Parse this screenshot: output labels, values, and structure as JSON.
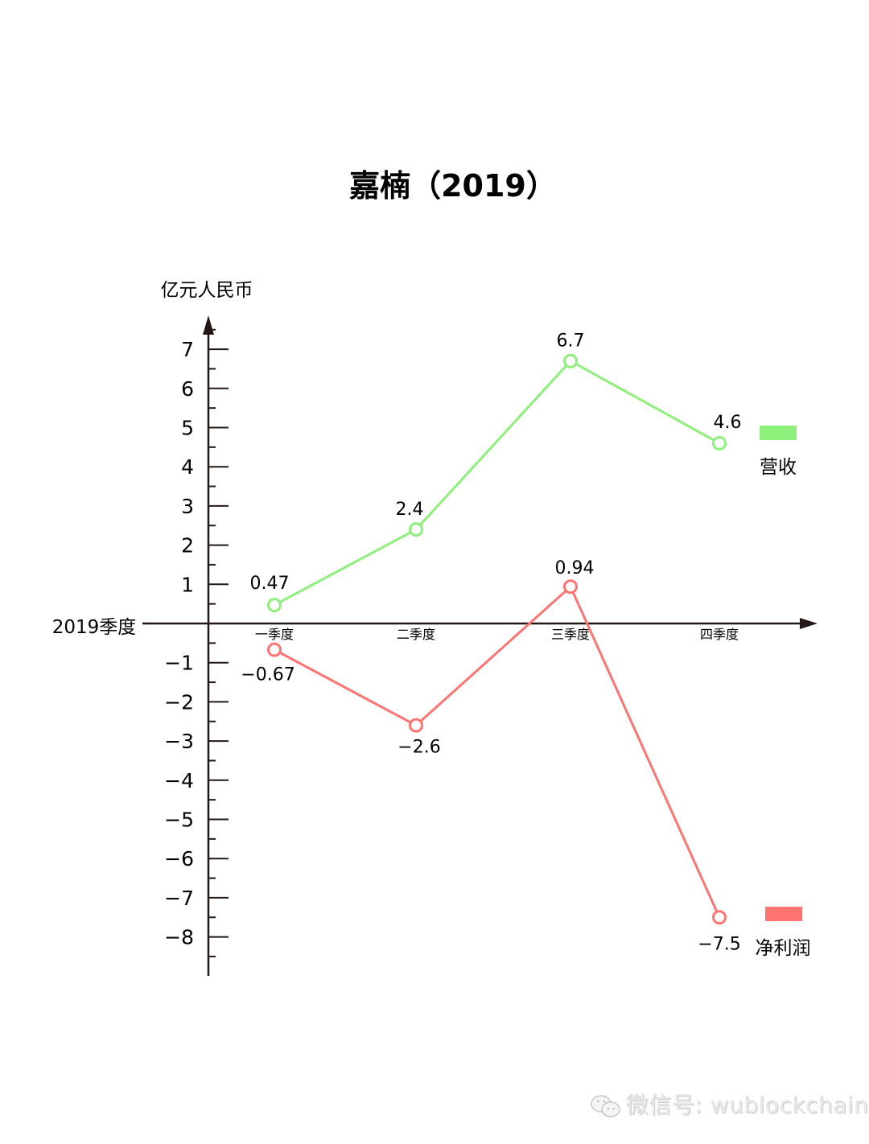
{
  "chart_data": {
    "type": "line",
    "title": "嘉楠（2019）",
    "ylabel": "亿元人民币",
    "xlabel": "2019季度",
    "categories": [
      "一季度",
      "二季度",
      "三季度",
      "四季度"
    ],
    "series": [
      {
        "name": "营收",
        "color": "#8cf07a",
        "values": [
          0.47,
          2.4,
          6.7,
          4.6
        ],
        "labels": [
          "0.47",
          "2.4",
          "6.7",
          "4.6"
        ]
      },
      {
        "name": "净利润",
        "color": "#ff7373",
        "values": [
          -0.67,
          -2.6,
          0.94,
          -7.5
        ],
        "labels": [
          "−0.67",
          "−2.6",
          "0.94",
          "−7.5"
        ]
      }
    ],
    "yticks": [
      7,
      6,
      5,
      4,
      3,
      2,
      1,
      -1,
      -2,
      -3,
      -4,
      -5,
      -6,
      -7,
      -8
    ],
    "ytick_labels": [
      "7",
      "6",
      "5",
      "4",
      "3",
      "2",
      "1",
      "−1",
      "−2",
      "−3",
      "−4",
      "−5",
      "−6",
      "−7",
      "−8"
    ],
    "ylim": [
      -9,
      8
    ],
    "grid": false,
    "legend_position": "right"
  },
  "title": "嘉楠（2019）",
  "axis": {
    "y_unit": "亿元人民币",
    "x_label": "2019季度"
  },
  "legend": {
    "revenue": "营收",
    "net_profit": "净利润"
  },
  "watermark": "微信号: wublockchain"
}
